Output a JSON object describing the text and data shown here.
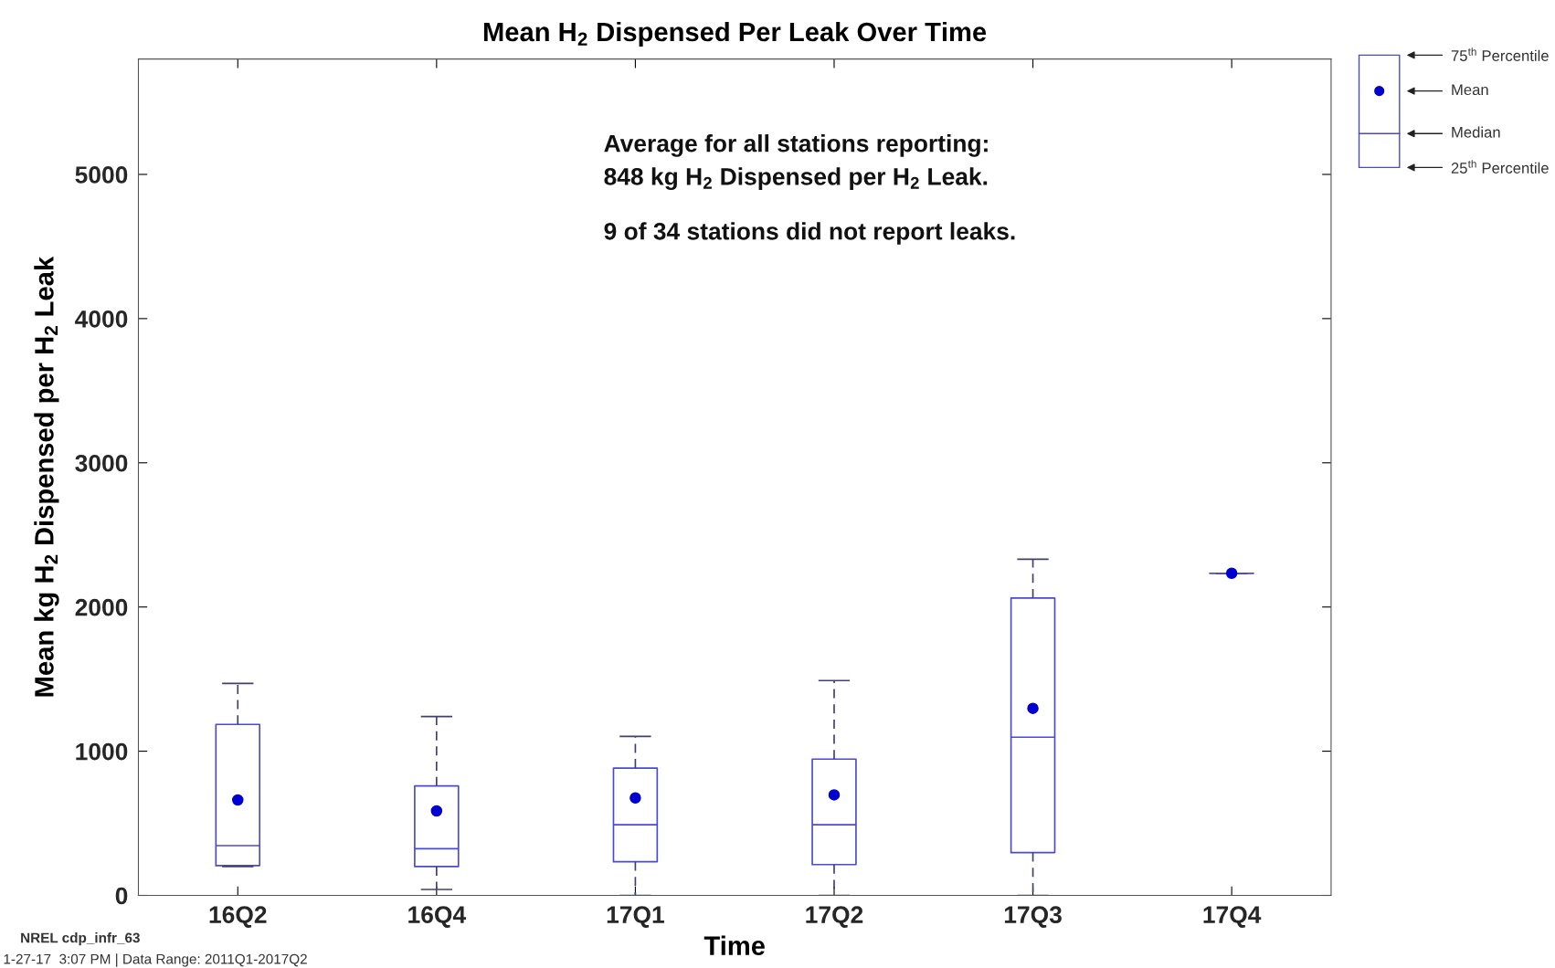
{
  "chart_data": {
    "type": "box",
    "title": "Mean H$_{2}$ Dispensed Per Leak Over Time",
    "xlabel": "Time",
    "ylabel": "Mean kg H$_{2}$ Dispensed per H$_{2}$ Leak",
    "categories": [
      "16Q2",
      "16Q4",
      "17Q1",
      "17Q2",
      "17Q3",
      "17Q4"
    ],
    "series": [
      {
        "color": "#4a4ad0",
        "boxes": [
          {
            "low": 200,
            "q1": 207,
            "median": 345,
            "q3": 1186,
            "high": 1470,
            "mean": 662
          },
          {
            "low": 41,
            "q1": 200,
            "median": 324,
            "q3": 759,
            "high": 1241,
            "mean": 586
          },
          {
            "low": 0,
            "q1": 234,
            "median": 490,
            "q3": 883,
            "high": 1103,
            "mean": 676
          },
          {
            "low": 0,
            "q1": 214,
            "median": 490,
            "q3": 945,
            "high": 1490,
            "mean": 697
          },
          {
            "low": 0,
            "q1": 297,
            "median": 1097,
            "q3": 2062,
            "high": 2331,
            "mean": 1297
          },
          {
            "low": 2234,
            "q1": 2234,
            "median": 2234,
            "q3": 2234,
            "high": 2234,
            "mean": 2234
          }
        ]
      }
    ],
    "ylim": [
      0,
      5800
    ],
    "yticks": [
      0,
      1000,
      2000,
      3000,
      4000,
      5000
    ],
    "grid": false,
    "marker": "circle",
    "annotations": [
      "Average for all stations reporting:\n848 kg H$_{2}$ Dispensed per H$_{2}$ Leak.",
      "9 of 34 stations did not report leaks.",
      "75$^{th}$ Percentile",
      "Mean",
      "Median",
      "25$^{th}$ Percentile",
      "NREL cdp_infr_63",
      "1-27-17  3:07 PM | Data Range: 2011Q1-2017Q2"
    ]
  }
}
